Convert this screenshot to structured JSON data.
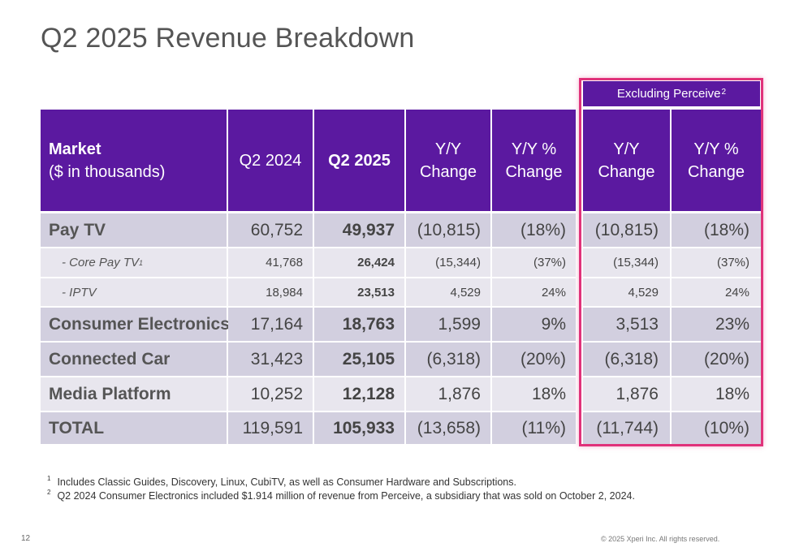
{
  "title": "Q2 2025 Revenue Breakdown",
  "excluding_label": "Excluding Perceive",
  "excluding_sup": "2",
  "header": {
    "market": "Market",
    "market_sub": "($ in thousands)",
    "q2_2024": "Q2 2024",
    "q2_2025": "Q2 2025",
    "yy_change_1": "Y/Y",
    "yy_change_2": "Change",
    "yy_pct_1": "Y/Y %",
    "yy_pct_2": "Change"
  },
  "rows": [
    {
      "label": "Pay TV",
      "sup": "",
      "q2_2024": "60,752",
      "q2_2025": "49,937",
      "yy": "(10,815)",
      "yy_pct": "(18%)",
      "ex_yy": "(10,815)",
      "ex_yy_pct": "(18%)"
    },
    {
      "label": "- Core Pay TV",
      "sup": "1",
      "q2_2024": "41,768",
      "q2_2025": "26,424",
      "yy": "(15,344)",
      "yy_pct": "(37%)",
      "ex_yy": "(15,344)",
      "ex_yy_pct": "(37%)"
    },
    {
      "label": "- IPTV",
      "sup": "",
      "q2_2024": "18,984",
      "q2_2025": "23,513",
      "yy": "4,529",
      "yy_pct": "24%",
      "ex_yy": "4,529",
      "ex_yy_pct": "24%"
    },
    {
      "label": "Consumer Electronics",
      "sup": "",
      "q2_2024": "17,164",
      "q2_2025": "18,763",
      "yy": "1,599",
      "yy_pct": "9%",
      "ex_yy": "3,513",
      "ex_yy_pct": "23%"
    },
    {
      "label": "Connected Car",
      "sup": "",
      "q2_2024": "31,423",
      "q2_2025": "25,105",
      "yy": "(6,318)",
      "yy_pct": "(20%)",
      "ex_yy": "(6,318)",
      "ex_yy_pct": "(20%)"
    },
    {
      "label": "Media Platform",
      "sup": "",
      "q2_2024": "10,252",
      "q2_2025": "12,128",
      "yy": "1,876",
      "yy_pct": "18%",
      "ex_yy": "1,876",
      "ex_yy_pct": "18%"
    },
    {
      "label": "TOTAL",
      "sup": "",
      "q2_2024": "119,591",
      "q2_2025": "105,933",
      "yy": "(13,658)",
      "yy_pct": "(11%)",
      "ex_yy": "(11,744)",
      "ex_yy_pct": "(10%)"
    }
  ],
  "footnotes": [
    {
      "num": "1",
      "text": "Includes Classic Guides, Discovery, Linux, CubiTV, as well as Consumer Hardware and Subscriptions."
    },
    {
      "num": "2",
      "text": "Q2 2024 Consumer Electronics included $1.914 million of revenue from Perceive, a subsidiary that was sold on October 2, 2024."
    }
  ],
  "page_number": "12",
  "copyright": "© 2025 Xperi Inc. All rights reserved.",
  "colors": {
    "header_purple": "#5b19a0",
    "highlight_pink": "#e0327a",
    "row_dark": "#d2cfdf",
    "row_light": "#e8e6ee"
  }
}
